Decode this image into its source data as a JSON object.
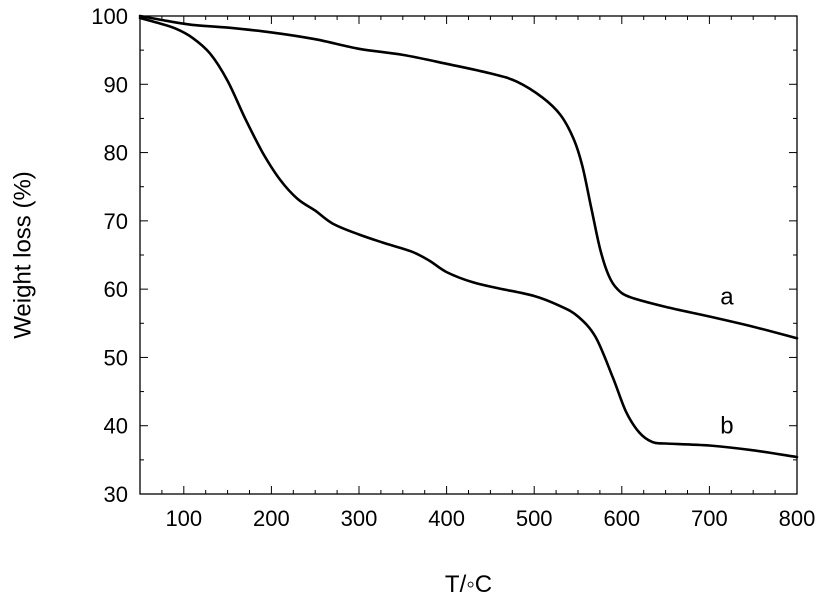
{
  "chart_data": {
    "type": "line",
    "title": "",
    "xlabel": "T/◦C",
    "ylabel": "Weight loss (%)",
    "xlim": [
      50,
      800
    ],
    "ylim": [
      30,
      100
    ],
    "xticks": [
      100,
      200,
      300,
      400,
      500,
      600,
      700,
      800
    ],
    "yticks": [
      30,
      40,
      50,
      60,
      70,
      80,
      90,
      100
    ],
    "grid": false,
    "legend": "none",
    "series": [
      {
        "name": "a",
        "color": "#000000",
        "points": [
          [
            50,
            100
          ],
          [
            80,
            99.3
          ],
          [
            110,
            98.7
          ],
          [
            150,
            98.3
          ],
          [
            200,
            97.6
          ],
          [
            250,
            96.6
          ],
          [
            300,
            95.2
          ],
          [
            350,
            94.3
          ],
          [
            400,
            93
          ],
          [
            450,
            91.6
          ],
          [
            480,
            90.4
          ],
          [
            510,
            88
          ],
          [
            530,
            85.5
          ],
          [
            545,
            82
          ],
          [
            555,
            78
          ],
          [
            565,
            72
          ],
          [
            575,
            66
          ],
          [
            585,
            62
          ],
          [
            595,
            60
          ],
          [
            610,
            58.8
          ],
          [
            650,
            57.4
          ],
          [
            700,
            56
          ],
          [
            750,
            54.5
          ],
          [
            800,
            52.8
          ]
        ]
      },
      {
        "name": "b",
        "color": "#000000",
        "points": [
          [
            50,
            99.7
          ],
          [
            70,
            99
          ],
          [
            90,
            98.2
          ],
          [
            110,
            96.8
          ],
          [
            130,
            94.5
          ],
          [
            150,
            90.5
          ],
          [
            170,
            85
          ],
          [
            190,
            80
          ],
          [
            210,
            76
          ],
          [
            230,
            73.2
          ],
          [
            250,
            71.5
          ],
          [
            270,
            69.6
          ],
          [
            300,
            68
          ],
          [
            330,
            66.7
          ],
          [
            360,
            65.5
          ],
          [
            380,
            64.2
          ],
          [
            400,
            62.5
          ],
          [
            430,
            61
          ],
          [
            460,
            60.1
          ],
          [
            500,
            59
          ],
          [
            530,
            57.5
          ],
          [
            550,
            56
          ],
          [
            570,
            53
          ],
          [
            590,
            47
          ],
          [
            605,
            42
          ],
          [
            620,
            39
          ],
          [
            635,
            37.6
          ],
          [
            650,
            37.4
          ],
          [
            700,
            37.1
          ],
          [
            750,
            36.4
          ],
          [
            800,
            35.4
          ]
        ]
      }
    ]
  }
}
